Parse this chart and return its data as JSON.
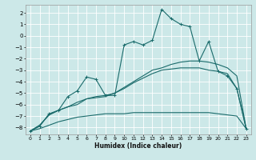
{
  "title": "",
  "xlabel": "Humidex (Indice chaleur)",
  "background_color": "#cce8e8",
  "grid_color": "#ffffff",
  "line_color": "#1a6b6b",
  "xlim": [
    -0.5,
    23.5
  ],
  "ylim": [
    -8.6,
    2.7
  ],
  "xticks": [
    0,
    1,
    2,
    3,
    4,
    5,
    6,
    7,
    8,
    9,
    10,
    11,
    12,
    13,
    14,
    15,
    16,
    17,
    18,
    19,
    20,
    21,
    22,
    23
  ],
  "yticks": [
    -8,
    -7,
    -6,
    -5,
    -4,
    -3,
    -2,
    -1,
    0,
    1,
    2
  ],
  "s1x": [
    0,
    1,
    2,
    3,
    4,
    5,
    6,
    7,
    8,
    9,
    10,
    11,
    12,
    13,
    14,
    15,
    16,
    17,
    18,
    19,
    20,
    21,
    22,
    23
  ],
  "s1y": [
    -8.3,
    -7.9,
    -6.8,
    -6.5,
    -5.3,
    -4.8,
    -3.6,
    -3.8,
    -5.2,
    -5.2,
    -0.8,
    -0.5,
    -0.8,
    -0.4,
    2.3,
    1.5,
    1.0,
    0.8,
    -2.2,
    -0.5,
    -3.1,
    -3.5,
    -4.6,
    -8.1
  ],
  "s2x": [
    0,
    1,
    2,
    3,
    4,
    5,
    6,
    7,
    8,
    9,
    10,
    11,
    12,
    13,
    14,
    15,
    16,
    17,
    18,
    19,
    20,
    21,
    22,
    23
  ],
  "s2y": [
    -8.3,
    -7.8,
    -6.9,
    -6.5,
    -6.2,
    -6.0,
    -5.5,
    -5.3,
    -5.2,
    -5.0,
    -4.5,
    -4.0,
    -3.5,
    -3.0,
    -2.8,
    -2.5,
    -2.3,
    -2.2,
    -2.2,
    -2.3,
    -2.5,
    -2.8,
    -3.5,
    -8.1
  ],
  "s3x": [
    0,
    1,
    2,
    3,
    4,
    5,
    6,
    7,
    8,
    9,
    10,
    11,
    12,
    13,
    14,
    15,
    16,
    17,
    18,
    19,
    20,
    21,
    22,
    23
  ],
  "s3y": [
    -8.3,
    -8.1,
    -7.8,
    -7.5,
    -7.3,
    -7.1,
    -7.0,
    -6.9,
    -6.8,
    -6.8,
    -6.8,
    -6.7,
    -6.7,
    -6.7,
    -6.7,
    -6.7,
    -6.7,
    -6.7,
    -6.7,
    -6.7,
    -6.8,
    -6.9,
    -7.0,
    -8.1
  ],
  "s4x": [
    0,
    1,
    2,
    3,
    4,
    5,
    6,
    7,
    8,
    9,
    10,
    11,
    12,
    13,
    14,
    15,
    16,
    17,
    18,
    19,
    20,
    21,
    22,
    23
  ],
  "s4y": [
    -8.3,
    -7.8,
    -6.9,
    -6.5,
    -6.2,
    -5.8,
    -5.5,
    -5.4,
    -5.3,
    -5.0,
    -4.6,
    -4.1,
    -3.7,
    -3.3,
    -3.0,
    -2.9,
    -2.8,
    -2.8,
    -2.8,
    -3.0,
    -3.1,
    -3.3,
    -4.6,
    -8.1
  ]
}
